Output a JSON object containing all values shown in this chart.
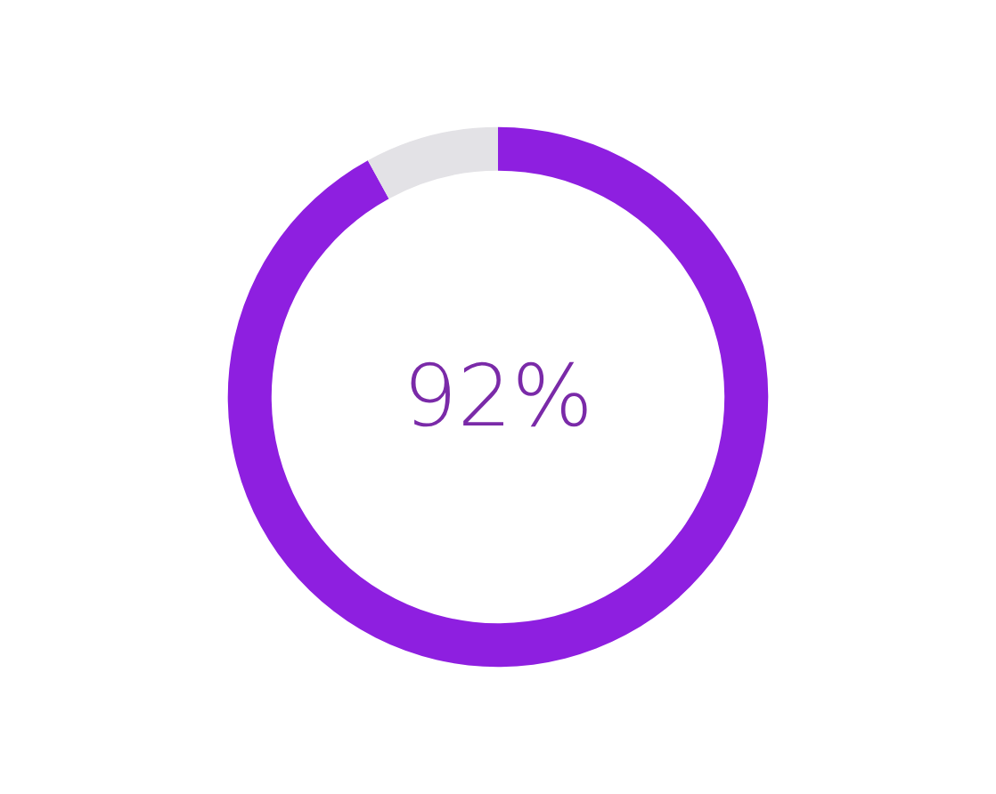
{
  "chart_data": {
    "type": "donut",
    "categories": [
      null,
      null
    ],
    "values": [
      92,
      8
    ],
    "colors": [
      "#8e1fe0",
      "#e3e2e6"
    ],
    "value_labels": [
      "92%",
      null
    ]
  }
}
